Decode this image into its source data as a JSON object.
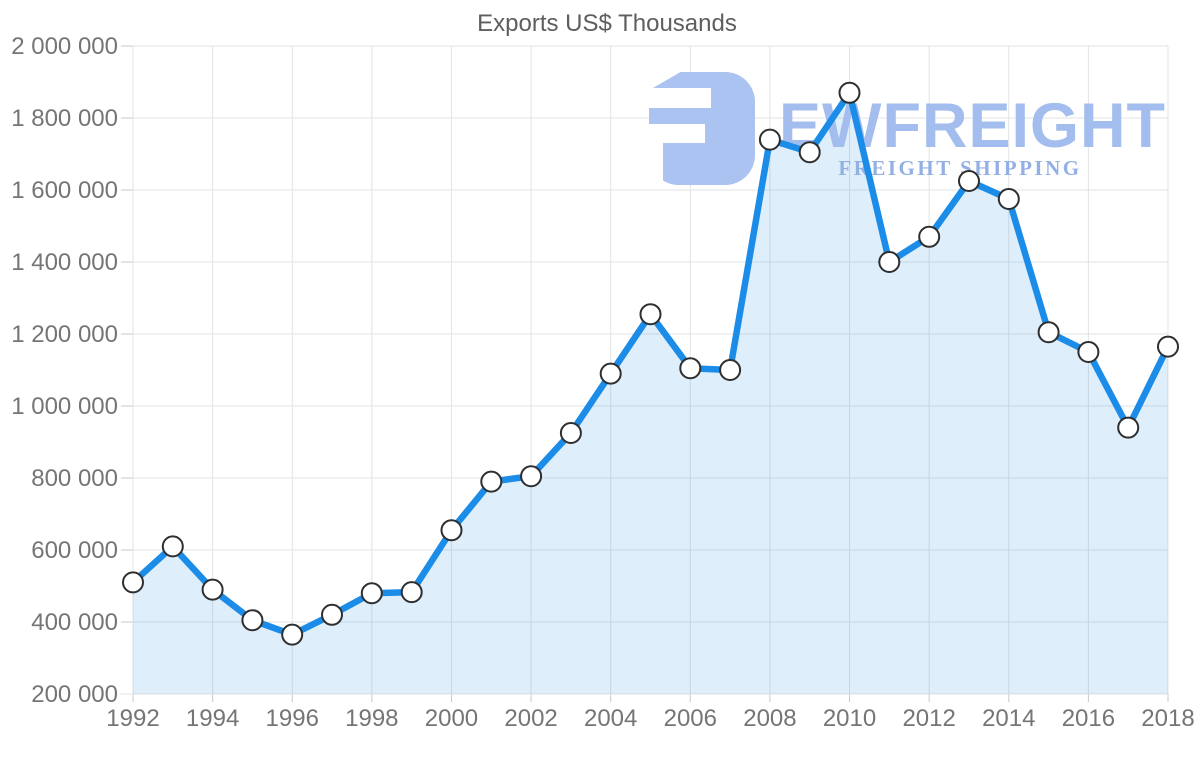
{
  "page": {
    "background": "#ffffff"
  },
  "chart_data": {
    "type": "area",
    "title": "Exports US$ Thousands",
    "xlabel": "",
    "ylabel": "",
    "x": [
      1992,
      1993,
      1994,
      1995,
      1996,
      1997,
      1998,
      1999,
      2000,
      2001,
      2002,
      2003,
      2004,
      2005,
      2006,
      2007,
      2008,
      2009,
      2010,
      2011,
      2012,
      2013,
      2014,
      2015,
      2016,
      2017,
      2018
    ],
    "series": [
      {
        "name": "Exports US$ Thousands",
        "values": [
          510000,
          610000,
          490000,
          405000,
          365000,
          420000,
          480000,
          483000,
          655000,
          790000,
          805000,
          925000,
          1090000,
          1255000,
          1105000,
          1100000,
          1740000,
          1705000,
          1870000,
          1400000,
          1470000,
          1625000,
          1575000,
          1205000,
          1150000,
          940000,
          1165000
        ]
      }
    ],
    "ylim": [
      200000,
      2000000
    ],
    "ytick_step": 200000,
    "ytick_labels": [
      "200 000",
      "400 000",
      "600 000",
      "800 000",
      "1 000 000",
      "1 200 000",
      "1 400 000",
      "1 600 000",
      "1 800 000",
      "2 000 000"
    ],
    "xtick_years": [
      1992,
      1994,
      1996,
      1998,
      2000,
      2002,
      2004,
      2006,
      2008,
      2010,
      2012,
      2014,
      2016,
      2018
    ],
    "xtick_labels": [
      "1992",
      "1994",
      "1996",
      "1998",
      "2000",
      "2002",
      "2004",
      "2006",
      "2008",
      "2010",
      "2012",
      "2014",
      "2016",
      "2018"
    ],
    "grid": true,
    "legend": "none",
    "marker": "circle"
  },
  "watermark": {
    "brand": "EWFREIGHT",
    "tagline": "FREIGHT SHIPPING"
  },
  "colors": {
    "line": "#1b8ce8",
    "area_fill": "rgba(30,136,229,0.14)",
    "marker_fill": "#ffffff",
    "marker_stroke": "#2f2f2f",
    "grid": "#e3e3e3",
    "tick": "#c9c9c9",
    "axis_text": "#757575",
    "title_text": "#5e5e5e",
    "watermark_glyph": "#aac3f0",
    "watermark_brand": "#a2bdee",
    "watermark_tagline": "#93b0e6"
  }
}
